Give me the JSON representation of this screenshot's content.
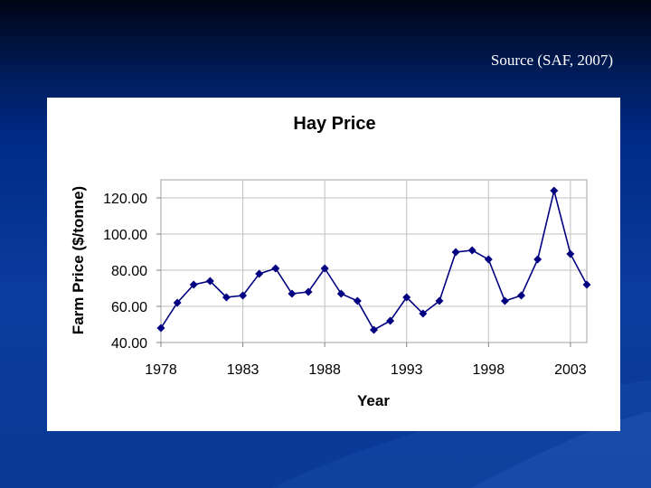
{
  "slide": {
    "source_text": "Source (SAF, 2007)"
  },
  "colors": {
    "background": "#0a3a96",
    "series": "#000080",
    "grid": "#c0c0c0"
  },
  "chart_data": {
    "type": "line",
    "title": "Hay Price",
    "xlabel": "Year",
    "ylabel": "Farm Price ($/tonne)",
    "xlim": [
      1978,
      2004
    ],
    "ylim": [
      40,
      130
    ],
    "x_ticks": [
      "1978",
      "1983",
      "1988",
      "1993",
      "1998",
      "2003"
    ],
    "y_ticks": [
      "40.00",
      "60.00",
      "80.00",
      "100.00",
      "120.00"
    ],
    "grid": true,
    "marker": "diamond",
    "x": [
      1978,
      1979,
      1980,
      1981,
      1982,
      1983,
      1984,
      1985,
      1986,
      1987,
      1988,
      1989,
      1990,
      1991,
      1992,
      1993,
      1994,
      1995,
      1996,
      1997,
      1998,
      1999,
      2000,
      2001,
      2002,
      2003,
      2004
    ],
    "values": [
      48,
      62,
      72,
      74,
      65,
      66,
      78,
      81,
      67,
      68,
      81,
      67,
      63,
      47,
      52,
      65,
      56,
      63,
      90,
      91,
      86,
      63,
      66,
      86,
      124,
      89,
      72
    ]
  }
}
